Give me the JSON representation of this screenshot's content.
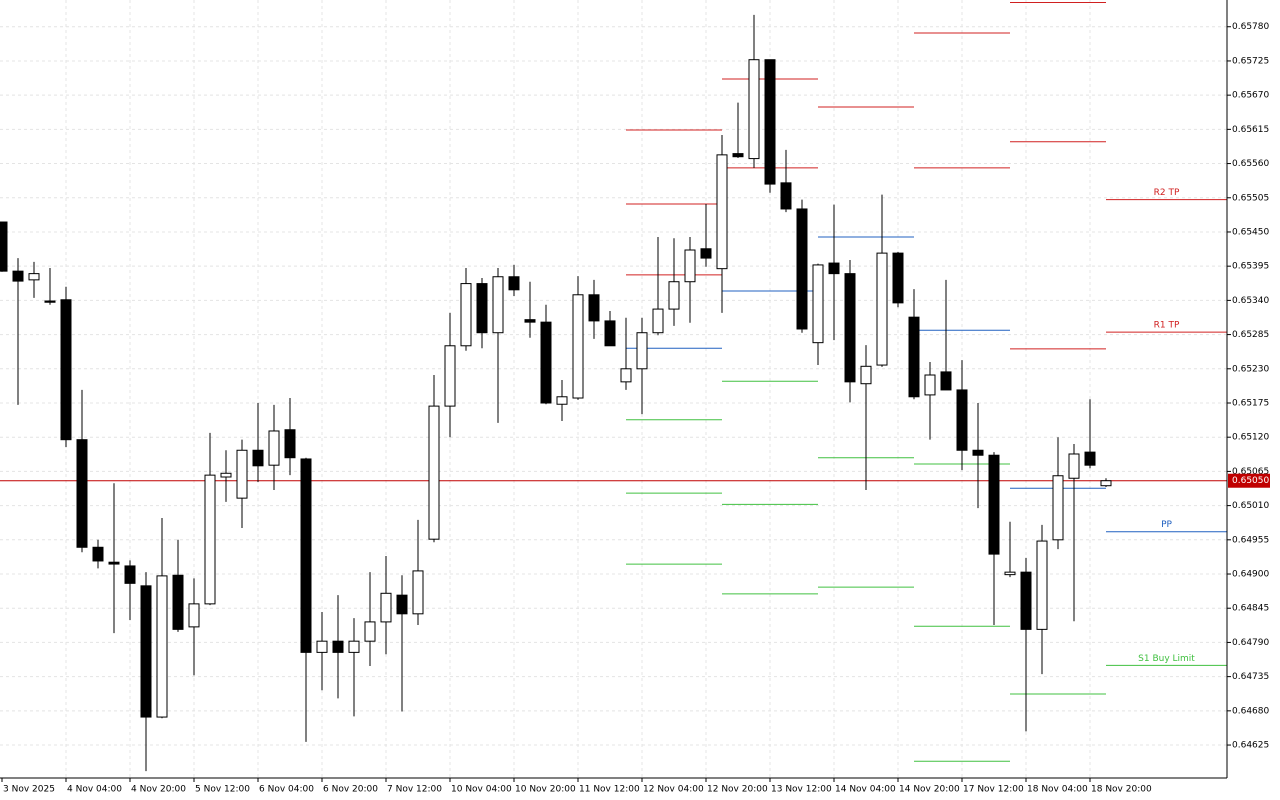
{
  "chart_data": {
    "type": "candlestick",
    "categories": [
      "3 Nov 2025",
      null,
      null,
      null,
      "4 Nov 04:00",
      null,
      null,
      null,
      "4 Nov 20:00",
      null,
      null,
      null,
      "5 Nov 12:00",
      null,
      null,
      null,
      "6 Nov 04:00",
      null,
      null,
      null,
      "6 Nov 20:00",
      null,
      null,
      null,
      "7 Nov 12:00",
      null,
      null,
      null,
      "10 Nov 04:00",
      null,
      null,
      null,
      "10 Nov 20:00",
      null,
      null,
      null,
      "11 Nov 12:00",
      null,
      null,
      null,
      "12 Nov 04:00",
      null,
      null,
      null,
      "12 Nov 20:00",
      null,
      null,
      null,
      "13 Nov 12:00",
      null,
      null,
      null,
      "14 Nov 04:00",
      null,
      null,
      null,
      "14 Nov 20:00",
      null,
      null,
      null,
      "17 Nov 12:00",
      null,
      null,
      null,
      "18 Nov 04:00",
      null,
      null,
      null,
      "18 Nov 20:00",
      null
    ],
    "open": [
      0.65466,
      0.65387,
      0.65373,
      0.65339,
      0.65341,
      0.65116,
      0.64943,
      0.64919,
      0.64913,
      0.64881,
      0.6467,
      0.64898,
      0.64815,
      0.64852,
      0.65056,
      0.65022,
      0.65099,
      0.65075,
      0.65132,
      0.65085,
      0.64774,
      0.64792,
      0.64774,
      0.64792,
      0.64823,
      0.64866,
      0.64836,
      0.64956,
      0.6517,
      0.65267,
      0.65367,
      0.65288,
      0.65378,
      0.65309,
      0.65305,
      0.65173,
      0.65183,
      0.65349,
      0.65307,
      0.65209,
      0.6523,
      0.65288,
      0.65326,
      0.6537,
      0.65423,
      0.65391,
      0.65576,
      0.65568,
      0.65727,
      0.65529,
      0.65487,
      0.65272,
      0.654,
      0.65383,
      0.65206,
      0.65236,
      0.65416,
      0.65313,
      0.65188,
      0.65225,
      0.65196,
      0.65099,
      0.65091,
      0.64899,
      0.64903,
      0.64811,
      0.64955,
      0.65054,
      0.65096,
      0.65042
    ],
    "high": [
      0.65466,
      0.65408,
      0.65402,
      0.65392,
      0.65362,
      0.65196,
      0.64955,
      0.65046,
      0.64922,
      0.64903,
      0.6499,
      0.64955,
      0.64893,
      0.65127,
      0.65099,
      0.65116,
      0.65175,
      0.65172,
      0.65183,
      0.65087,
      0.64839,
      0.64866,
      0.64829,
      0.64903,
      0.64929,
      0.64898,
      0.64987,
      0.6522,
      0.6532,
      0.65392,
      0.65376,
      0.65392,
      0.65397,
      0.6537,
      0.65333,
      0.65212,
      0.65379,
      0.65373,
      0.65323,
      0.65312,
      0.65312,
      0.65442,
      0.6544,
      0.65442,
      0.65495,
      0.65606,
      0.65658,
      0.65799,
      0.65727,
      0.65582,
      0.65502,
      0.65399,
      0.65494,
      0.65405,
      0.65268,
      0.6551,
      0.65418,
      0.65358,
      0.65241,
      0.65373,
      0.65244,
      0.65175,
      0.65096,
      0.64984,
      0.64926,
      0.64979,
      0.6512,
      0.65109,
      0.65181,
      0.65054
    ],
    "low": [
      0.65386,
      0.65172,
      0.65344,
      0.65333,
      0.65104,
      0.64935,
      0.64909,
      0.64805,
      0.64826,
      0.64583,
      0.64668,
      0.64807,
      0.64737,
      0.6485,
      0.65016,
      0.64974,
      0.65048,
      0.65035,
      0.65059,
      0.6463,
      0.64713,
      0.647,
      0.64671,
      0.64752,
      0.64771,
      0.64679,
      0.64818,
      0.64951,
      0.6512,
      0.65259,
      0.65263,
      0.65143,
      0.65347,
      0.6528,
      0.65173,
      0.65146,
      0.6518,
      0.65278,
      0.65267,
      0.65196,
      0.65157,
      0.65284,
      0.65299,
      0.65304,
      0.65394,
      0.6532,
      0.65569,
      0.65553,
      0.65513,
      0.65482,
      0.65288,
      0.65236,
      0.65276,
      0.65176,
      0.65035,
      0.65233,
      0.65329,
      0.65181,
      0.65116,
      0.65196,
      0.65067,
      0.65006,
      0.64818,
      0.64895,
      0.64647,
      0.64739,
      0.6494,
      0.64824,
      0.6507,
      0.6504
    ],
    "close": [
      0.65387,
      0.65371,
      0.65383,
      0.65337,
      0.65116,
      0.64943,
      0.64921,
      0.64916,
      0.64885,
      0.6467,
      0.64897,
      0.64811,
      0.64852,
      0.65059,
      0.65062,
      0.65099,
      0.65074,
      0.6513,
      0.65087,
      0.64774,
      0.64792,
      0.64774,
      0.64792,
      0.64823,
      0.64869,
      0.64836,
      0.64905,
      0.6517,
      0.65267,
      0.65367,
      0.65288,
      0.65378,
      0.65357,
      0.65305,
      0.65175,
      0.65185,
      0.65349,
      0.65307,
      0.65267,
      0.6523,
      0.65288,
      0.65326,
      0.6537,
      0.65421,
      0.65408,
      0.65574,
      0.65571,
      0.65727,
      0.65527,
      0.65487,
      0.65294,
      0.65397,
      0.65383,
      0.65209,
      0.65234,
      0.65416,
      0.65336,
      0.65185,
      0.6522,
      0.65196,
      0.65099,
      0.65091,
      0.64932,
      0.64903,
      0.64811,
      0.64953,
      0.65058,
      0.65093,
      0.65075,
      0.6505
    ],
    "up_color": "#ffffff",
    "down_color": "#000000",
    "wick_color": "#000000",
    "ylim": [
      0.64572,
      0.65823
    ],
    "yticks": [
      {
        "value": 0.6578,
        "label": "0.65780"
      },
      {
        "value": 0.65725,
        "label": "0.65725"
      },
      {
        "value": 0.6567,
        "label": "0.65670"
      },
      {
        "value": 0.65615,
        "label": "0.65615"
      },
      {
        "value": 0.6556,
        "label": "0.65560"
      },
      {
        "value": 0.65505,
        "label": "0.65505"
      },
      {
        "value": 0.6545,
        "label": "0.65450"
      },
      {
        "value": 0.65395,
        "label": "0.65395"
      },
      {
        "value": 0.6534,
        "label": "0.65340"
      },
      {
        "value": 0.65285,
        "label": "0.65285"
      },
      {
        "value": 0.6523,
        "label": "0.65230"
      },
      {
        "value": 0.65175,
        "label": "0.65175"
      },
      {
        "value": 0.6512,
        "label": "0.65120"
      },
      {
        "value": 0.65065,
        "label": "0.65065"
      },
      {
        "value": 0.6501,
        "label": "0.65010"
      },
      {
        "value": 0.64955,
        "label": "0.64955"
      },
      {
        "value": 0.649,
        "label": "0.64900"
      },
      {
        "value": 0.64845,
        "label": "0.64845"
      },
      {
        "value": 0.6479,
        "label": "0.64790"
      },
      {
        "value": 0.64735,
        "label": "0.64735"
      },
      {
        "value": 0.6468,
        "label": "0.64680"
      },
      {
        "value": 0.64625,
        "label": "0.64625"
      }
    ],
    "grid": true,
    "current_price": {
      "value": 0.6505,
      "label": "0.65050"
    },
    "current_price_color": "#c00000",
    "resistance_color": "#d02020",
    "pivot_color": "#2060c0",
    "support_color": "#40c040",
    "pivot_levels": [
      {
        "resistance": [
          0.65381,
          0.65495,
          0.65614
        ],
        "pivot": 0.65263,
        "support": [
          0.65148,
          0.6503,
          0.64916
        ]
      },
      {
        "resistance": [
          0.65553,
          0.65696
        ],
        "pivot": 0.65355,
        "support": [
          0.6521,
          0.65012,
          0.64868
        ]
      },
      {
        "resistance": [
          0.65651
        ],
        "pivot": 0.65442,
        "support": [
          0.65087,
          0.64879
        ]
      },
      {
        "resistance": [
          0.65553,
          0.6577
        ],
        "pivot": 0.65292,
        "support": [
          0.65077,
          0.64816,
          0.64599
        ]
      },
      {
        "resistance": [
          0.65262,
          0.65595,
          0.65819
        ],
        "pivot": 0.65038,
        "support": [
          0.64707
        ]
      },
      {
        "resistance": [
          0.65289,
          0.65502
        ],
        "pivot": 0.64968,
        "support": [
          0.64753
        ],
        "resistance_labels": [
          "R1 TP",
          "R2 TP"
        ],
        "pivot_label": "PP",
        "support_labels": [
          "S1 Buy Limit"
        ]
      }
    ]
  }
}
